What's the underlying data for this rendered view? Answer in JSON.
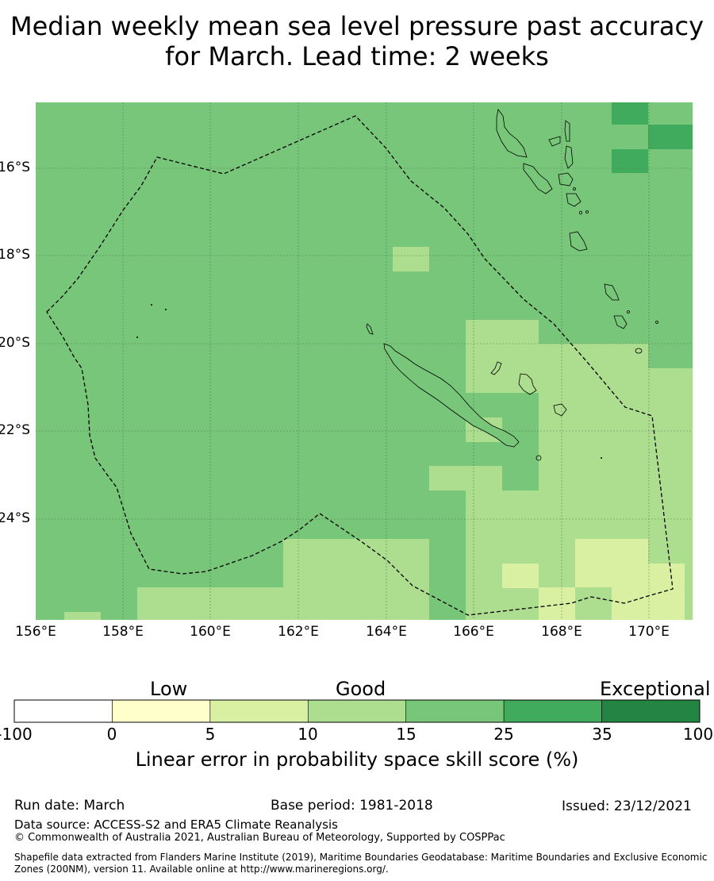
{
  "title": "Median weekly mean sea level pressure past accuracy for March. Lead time: 2 weeks",
  "map": {
    "latitude_labels": [
      "16°S",
      "18°S",
      "20°S",
      "22°S",
      "24°S"
    ],
    "longitude_labels": [
      "156°E",
      "158°E",
      "160°E",
      "162°E",
      "164°E",
      "166°E",
      "168°E",
      "170°E"
    ],
    "gridlines": true,
    "boundary": "dashed",
    "region_description_colors": {
      "15-25": "#78c679",
      "10-15": "#addd8e",
      "5-10": "#d9f0a3",
      "25-35": "#41ab5d"
    }
  },
  "colorbar": {
    "categories": [
      "Low",
      "Good",
      "Exceptional"
    ],
    "ticks": [
      "-100",
      "0",
      "5",
      "10",
      "15",
      "25",
      "35",
      "100"
    ],
    "colors": [
      "#ffffff",
      "#ffffcc",
      "#d9f0a3",
      "#addd8e",
      "#78c679",
      "#41ab5d",
      "#238443"
    ],
    "label": "Linear error in probability space skill score (%)"
  },
  "footer": {
    "run_date": "Run date: March",
    "base_period": "Base period: 1981-2018",
    "issued": "Issued: 23/12/2021",
    "data_source": "Data source: ACCESS-S2 and ERA5 Climate Reanalysis",
    "copyright": "© Commonwealth of Australia 2021, Australian Bureau of Meteorology, Supported by COSPPac",
    "shapefile": "Shapefile data extracted from Flanders Marine Institute (2019), Maritime Boundaries Geodatabase: Maritime Boundaries and Exclusive Economic Zones (200NM), version 11. Available online at http://www.marineregions.org/."
  }
}
